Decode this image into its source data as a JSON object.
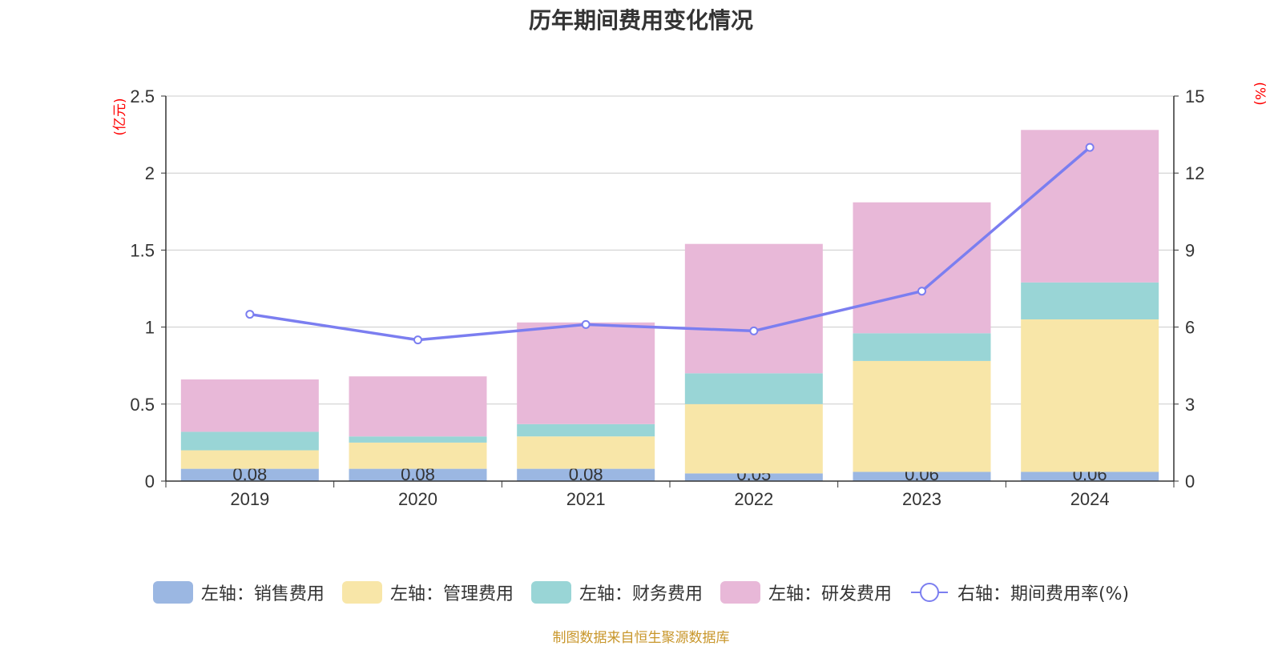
{
  "chart_data": {
    "type": "bar",
    "title": "历年期间费用变化情况",
    "categories": [
      "2019",
      "2020",
      "2021",
      "2022",
      "2023",
      "2024"
    ],
    "y_left": {
      "unit_label": "(亿元)",
      "range": [
        0,
        2.5
      ],
      "ticks": [
        "0",
        "0.5",
        "1",
        "1.5",
        "2",
        "2.5"
      ]
    },
    "y_right": {
      "unit_label": "(%)",
      "range": [
        0,
        15
      ],
      "ticks": [
        "0",
        "3",
        "6",
        "9",
        "12",
        "15"
      ]
    },
    "grid": true,
    "legend_position": "bottom",
    "series": [
      {
        "name": "左轴：销售费用",
        "type": "bar",
        "stack": true,
        "axis": "left",
        "color": "#9bb7e2",
        "values": [
          0.08,
          0.08,
          0.08,
          0.05,
          0.06,
          0.06
        ],
        "labels": [
          "0.08",
          "0.08",
          "0.08",
          "0.05",
          "0.06",
          "0.06"
        ]
      },
      {
        "name": "左轴：管理费用",
        "type": "bar",
        "stack": true,
        "axis": "left",
        "color": "#f8e6a8",
        "values": [
          0.12,
          0.17,
          0.21,
          0.45,
          0.72,
          0.99
        ]
      },
      {
        "name": "左轴：财务费用",
        "type": "bar",
        "stack": true,
        "axis": "left",
        "color": "#99d5d6",
        "values": [
          0.12,
          0.04,
          0.08,
          0.2,
          0.18,
          0.24
        ]
      },
      {
        "name": "左轴：研发费用",
        "type": "bar",
        "stack": true,
        "axis": "left",
        "color": "#e8b8d8",
        "values": [
          0.34,
          0.39,
          0.66,
          0.84,
          0.85,
          0.99
        ]
      },
      {
        "name": "右轴：期间费用率(%)",
        "type": "line",
        "axis": "right",
        "color": "#7b7ef0",
        "values": [
          6.5,
          5.5,
          6.1,
          5.85,
          7.4,
          13.0
        ]
      }
    ]
  },
  "source_note": "制图数据来自恒生聚源数据库"
}
